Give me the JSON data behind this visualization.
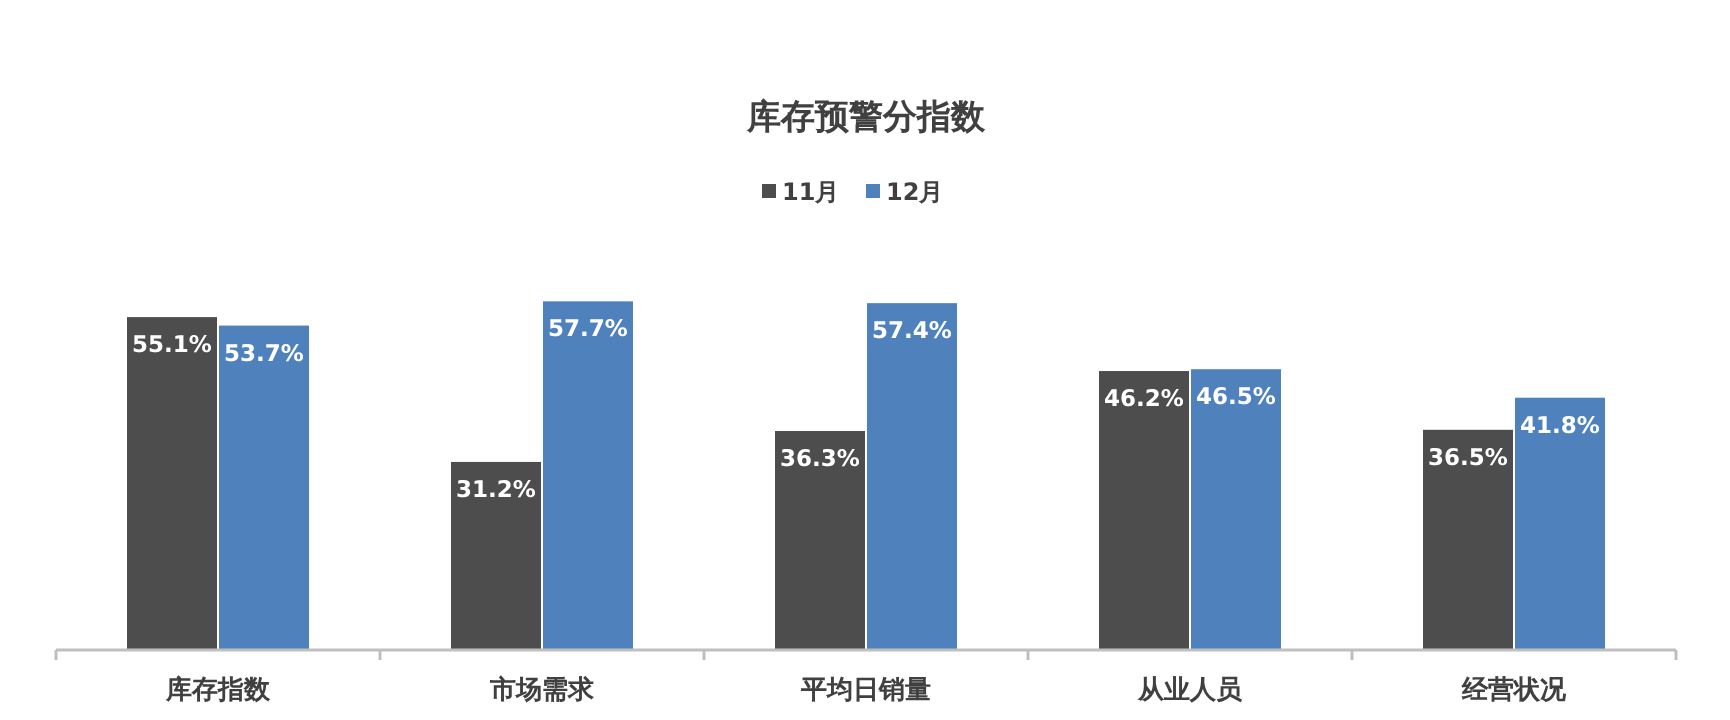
{
  "chart_data": {
    "type": "bar",
    "title": "库存预警分指数",
    "categories": [
      "库存指数",
      "市场需求",
      "平均日销量",
      "从业人员",
      "经营状况"
    ],
    "series": [
      {
        "name": "11月",
        "color": "#4d4d4d",
        "values": [
          55.1,
          31.2,
          36.3,
          46.2,
          36.5
        ],
        "value_labels": [
          "55.1%",
          "31.2%",
          "36.3%",
          "46.2%",
          "36.5%"
        ]
      },
      {
        "name": "12月",
        "color": "#4f81bd",
        "values": [
          53.7,
          57.7,
          57.4,
          46.5,
          41.8
        ],
        "value_labels": [
          "53.7%",
          "57.7%",
          "57.4%",
          "46.5%",
          "41.8%"
        ]
      }
    ],
    "legend": "top"
  }
}
